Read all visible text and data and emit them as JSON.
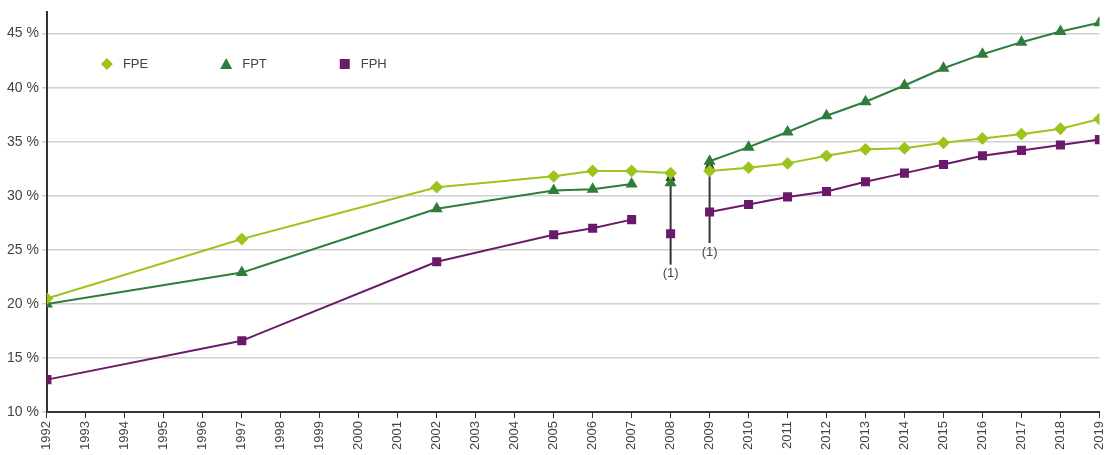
{
  "chart_data": {
    "type": "line",
    "xlim": [
      1992,
      2019
    ],
    "xticks": [
      1992,
      1993,
      1994,
      1995,
      1996,
      1997,
      1998,
      1999,
      2000,
      2001,
      2002,
      2003,
      2004,
      2005,
      2006,
      2007,
      2008,
      2009,
      2010,
      2011,
      2012,
      2013,
      2014,
      2015,
      2016,
      2017,
      2018,
      2019
    ],
    "ylim": [
      10,
      47
    ],
    "yticks": [
      {
        "value": 10,
        "label": "10 %"
      },
      {
        "value": 15,
        "label": "15 %"
      },
      {
        "value": 20,
        "label": "20 %"
      },
      {
        "value": 25,
        "label": "25 %"
      },
      {
        "value": 30,
        "label": "30 %"
      },
      {
        "value": 35,
        "label": "35 %"
      },
      {
        "value": 40,
        "label": "40 %"
      },
      {
        "value": 45,
        "label": "45 %"
      }
    ],
    "grid": "y",
    "legend": "top left",
    "series": [
      {
        "name": "FPE",
        "color": "#9dc41a",
        "marker": "diamond",
        "x": [
          1992,
          1997,
          2002,
          2005,
          2006,
          2007,
          2008
        ],
        "values": [
          20.5,
          26.0,
          30.8,
          31.8,
          32.3,
          32.3,
          32.1
        ]
      },
      {
        "name": "FPT",
        "color": "#2e7d3a",
        "marker": "triangle",
        "x": [
          1992,
          1997,
          2002,
          2005,
          2006,
          2007
        ],
        "values": [
          20.0,
          22.9,
          28.8,
          30.5,
          30.6,
          31.1
        ]
      },
      {
        "name": "FPH",
        "color": "#6b1a6b",
        "marker": "square",
        "x": [
          1992,
          1997,
          2002,
          2005,
          2006,
          2007
        ],
        "values": [
          13.0,
          16.6,
          23.9,
          26.4,
          27.0,
          27.8
        ]
      },
      {
        "color": "#2e7d3a",
        "marker": "triangle",
        "x": [
          2008
        ],
        "values": [
          31.2
        ]
      },
      {
        "color": "#6b1a6b",
        "marker": "square",
        "x": [
          2008
        ],
        "values": [
          26.5
        ]
      },
      {
        "color": "#9dc41a",
        "marker": "diamond",
        "x": [
          2009,
          2010,
          2011,
          2012,
          2013,
          2014,
          2015,
          2016,
          2017,
          2018,
          2019
        ],
        "values": [
          32.3,
          32.6,
          33.0,
          33.7,
          34.3,
          34.4,
          34.9,
          35.3,
          35.7,
          36.2,
          37.1
        ]
      },
      {
        "color": "#2e7d3a",
        "marker": "triangle",
        "x": [
          2009,
          2010,
          2011,
          2012,
          2013,
          2014,
          2015,
          2016,
          2017,
          2018,
          2019
        ],
        "values": [
          33.2,
          34.5,
          35.9,
          37.4,
          38.7,
          40.2,
          41.8,
          43.1,
          44.2,
          45.2,
          46.0
        ]
      },
      {
        "color": "#6b1a6b",
        "marker": "square",
        "x": [
          2009,
          2010,
          2011,
          2012,
          2013,
          2014,
          2015,
          2016,
          2017,
          2018,
          2019
        ],
        "values": [
          28.5,
          29.2,
          29.9,
          30.4,
          31.3,
          32.1,
          32.9,
          33.7,
          34.2,
          34.7,
          35.2
        ]
      }
    ],
    "annotations": [
      {
        "text": "(1)",
        "x": 2008,
        "y": 26.5
      },
      {
        "text": "(1)",
        "x": 2009,
        "y": 28.5
      }
    ]
  }
}
